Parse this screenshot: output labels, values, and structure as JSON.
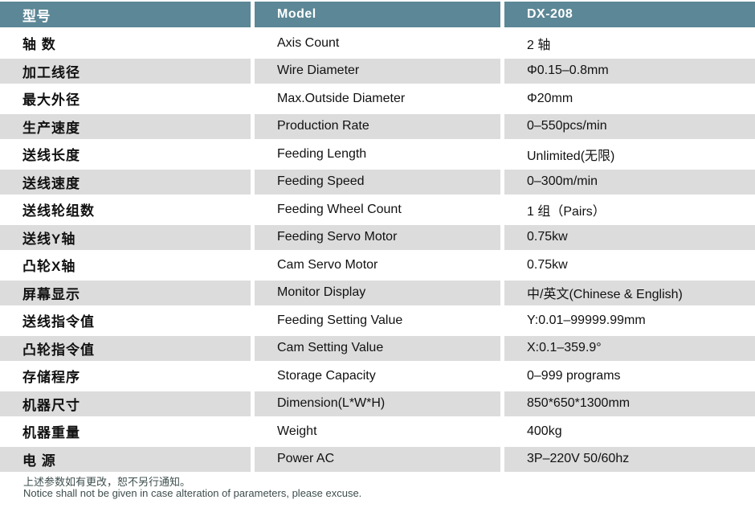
{
  "header": {
    "label_cn": "型号",
    "label_en": "Model",
    "model_value": "DX-208"
  },
  "rows": [
    {
      "cn": "轴 数",
      "en": "Axis Count",
      "value": "2 轴"
    },
    {
      "cn": "加工线径",
      "en": "Wire Diameter",
      "value": "Φ0.15–0.8mm"
    },
    {
      "cn": "最大外径",
      "en": "Max.Outside Diameter",
      "value": "Φ20mm"
    },
    {
      "cn": "生产速度",
      "en": "Production Rate",
      "value": "0–550pcs/min"
    },
    {
      "cn": "送线长度",
      "en": "Feeding Length",
      "value": "Unlimited(无限)"
    },
    {
      "cn": "送线速度",
      "en": "Feeding Speed",
      "value": "0–300m/min"
    },
    {
      "cn": "送线轮组数",
      "en": "Feeding Wheel Count",
      "value": "1 组（Pairs）"
    },
    {
      "cn": "送线Y轴",
      "en": "Feeding Servo Motor",
      "value": "0.75kw"
    },
    {
      "cn": "凸轮X轴",
      "en": "Cam Servo Motor",
      "value": "0.75kw"
    },
    {
      "cn": "屏幕显示",
      "en": "Monitor Display",
      "value": "中/英文(Chinese & English)"
    },
    {
      "cn": "送线指令值",
      "en": "Feeding Setting Value",
      "value": "Y:0.01–99999.99mm"
    },
    {
      "cn": "凸轮指令值",
      "en": "Cam Setting Value",
      "value": "X:0.1–359.9°"
    },
    {
      "cn": "存储程序",
      "en": "Storage Capacity",
      "value": "0–999 programs"
    },
    {
      "cn": "机器尺寸",
      "en": "Dimension(L*W*H)",
      "value": "850*650*1300mm"
    },
    {
      "cn": "机器重量",
      "en": "Weight",
      "value": "400kg"
    },
    {
      "cn": "电 源",
      "en": "Power AC",
      "value": "3P–220V 50/60hz"
    }
  ],
  "footer": {
    "line_cn": "上述参数如有更改，恕不另行通知。",
    "line_en": "Notice shall not be given in case alteration of parameters, please excuse."
  },
  "colors": {
    "header_bg": "#5C8796",
    "alt_row_bg": "#DCDCDC",
    "footer_text": "#3E4D4D"
  }
}
